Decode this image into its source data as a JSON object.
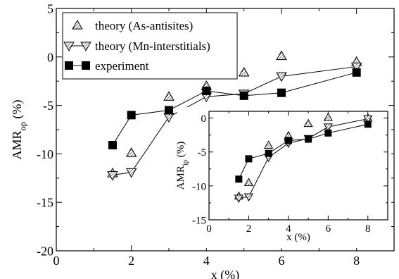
{
  "chart_data": [
    {
      "type": "scatter",
      "title": "",
      "xlabel": "x (%)",
      "ylabel_main": "AMR",
      "ylabel_sub": "op",
      "ylabel_suffix": " (%)",
      "xlim": [
        0,
        9
      ],
      "ylim": [
        -20,
        5
      ],
      "xticks": [
        0,
        2,
        4,
        6,
        8
      ],
      "yticks": [
        -20,
        -15,
        -10,
        -5,
        0,
        5
      ],
      "grid": false,
      "legend": "top-left",
      "series": [
        {
          "name": "theory (As-antisites)",
          "marker": "triangle-up-hatched",
          "line": false,
          "x": [
            1.5,
            2.0,
            3.0,
            4.0,
            5.0,
            6.0,
            8.0
          ],
          "y": [
            -12.0,
            -9.9,
            -4.1,
            -3.0,
            -1.6,
            0.1,
            -0.5
          ]
        },
        {
          "name": "theory (Mn-interstitials)",
          "marker": "triangle-down-hatched",
          "line": true,
          "x": [
            1.5,
            2.0,
            3.0,
            4.0,
            5.0,
            6.0,
            8.0
          ],
          "y": [
            -12.2,
            -11.9,
            -6.2,
            -4.1,
            -3.8,
            -2.0,
            -1.0
          ]
        },
        {
          "name": "experiment",
          "marker": "square-filled",
          "line": true,
          "x": [
            1.5,
            2.0,
            3.0,
            4.0,
            5.0,
            6.0,
            8.0
          ],
          "y": [
            -9.1,
            -6.0,
            -5.5,
            -3.5,
            -4.0,
            -3.7,
            -1.6
          ]
        }
      ]
    },
    {
      "type": "scatter",
      "title": "",
      "xlabel": "x (%)",
      "ylabel_main": "AMR",
      "ylabel_sub": "ip",
      "ylabel_suffix": " (%)",
      "xlim": [
        0,
        9
      ],
      "ylim": [
        -15,
        1
      ],
      "xticks": [
        0,
        2,
        4,
        6,
        8
      ],
      "yticks": [
        -15,
        -10,
        -5,
        0
      ],
      "grid": false,
      "series": [
        {
          "name": "theory (As-antisites)",
          "marker": "triangle-up-hatched",
          "line": false,
          "x": [
            1.5,
            2.0,
            3.0,
            4.0,
            5.0,
            6.0,
            8.0
          ],
          "y": [
            -11.5,
            -9.5,
            -4.0,
            -2.6,
            -0.8,
            0.1,
            0.0
          ]
        },
        {
          "name": "theory (Mn-interstitials)",
          "marker": "triangle-down-hatched",
          "line": true,
          "x": [
            1.5,
            2.0,
            3.0,
            4.0,
            5.0,
            6.0,
            8.0
          ],
          "y": [
            -11.8,
            -11.6,
            -5.8,
            -3.7,
            -3.0,
            -1.3,
            -0.1
          ]
        },
        {
          "name": "experiment",
          "marker": "square-filled",
          "line": true,
          "x": [
            1.5,
            2.0,
            3.0,
            4.0,
            5.0,
            6.0,
            8.0
          ],
          "y": [
            -9.0,
            -6.0,
            -5.2,
            -3.3,
            -3.1,
            -2.2,
            -0.9
          ]
        }
      ]
    }
  ]
}
